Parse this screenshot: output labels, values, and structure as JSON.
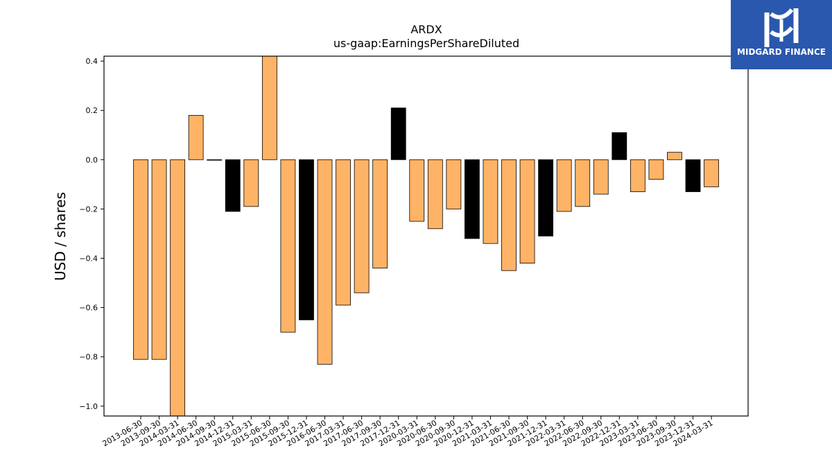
{
  "colors": {
    "orange": "#ffb366",
    "black": "#000000",
    "logo_bg": "#2a58ae"
  },
  "logo": {
    "text": "MIDGARD FINANCE",
    "icon": "midgard-logo-icon"
  },
  "chart_data": {
    "type": "bar",
    "title": "ARDX",
    "subtitle": "us-gaap:EarningsPerShareDiluted",
    "xlabel": "",
    "ylabel": "USD / shares",
    "ylim": [
      -1.04,
      0.42
    ],
    "yticks": [
      -1.0,
      -0.8,
      -0.6,
      -0.4,
      -0.2,
      0.0,
      0.2,
      0.4
    ],
    "ytick_labels": [
      "−1.0",
      "−0.8",
      "−0.6",
      "−0.4",
      "−0.2",
      "0.0",
      "0.2",
      "0.4"
    ],
    "grid": false,
    "categories": [
      "2013-06-30",
      "2013-09-30",
      "2014-03-31",
      "2014-06-30",
      "2014-09-30",
      "2014-12-31",
      "2015-03-31",
      "2015-06-30",
      "2015-09-30",
      "2015-12-31",
      "2016-06-30",
      "2017-03-31",
      "2017-06-30",
      "2017-09-30",
      "2017-12-31",
      "2020-03-31",
      "2020-06-30",
      "2020-09-30",
      "2020-12-31",
      "2021-03-31",
      "2021-06-30",
      "2021-09-30",
      "2021-12-31",
      "2022-03-31",
      "2022-06-30",
      "2022-09-30",
      "2022-12-31",
      "2023-03-31",
      "2023-06-30",
      "2023-09-30",
      "2023-12-31",
      "2024-03-31"
    ],
    "values": [
      -0.81,
      -0.81,
      -1.04,
      0.18,
      0.0,
      -0.21,
      -0.19,
      0.42,
      -0.7,
      -0.65,
      -0.83,
      -0.59,
      -0.54,
      -0.44,
      0.21,
      -0.25,
      -0.28,
      -0.2,
      -0.32,
      -0.34,
      -0.45,
      -0.42,
      -0.31,
      -0.21,
      -0.19,
      -0.14,
      0.11,
      -0.13,
      -0.08,
      0.03,
      -0.13,
      -0.11
    ],
    "bar_colors": [
      "orange",
      "orange",
      "orange",
      "orange",
      "orange",
      "black",
      "orange",
      "orange",
      "orange",
      "black",
      "orange",
      "orange",
      "orange",
      "orange",
      "black",
      "orange",
      "orange",
      "orange",
      "black",
      "orange",
      "orange",
      "orange",
      "black",
      "orange",
      "orange",
      "orange",
      "black",
      "orange",
      "orange",
      "orange",
      "black",
      "orange"
    ]
  }
}
